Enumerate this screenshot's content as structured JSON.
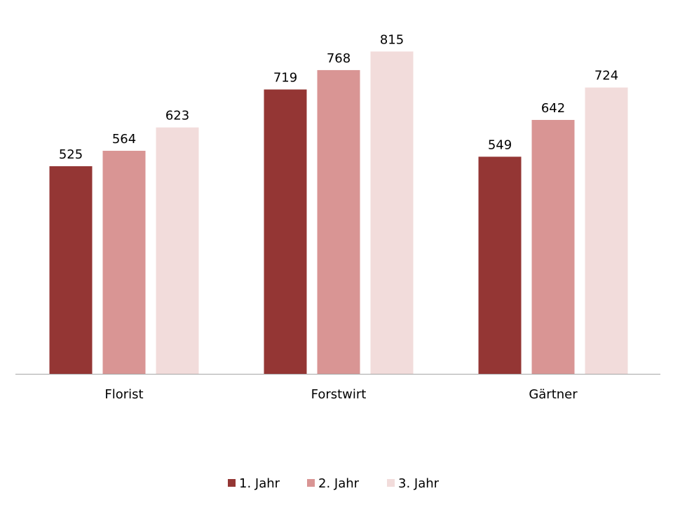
{
  "chart_data": {
    "type": "bar",
    "title": "",
    "xlabel": "",
    "ylabel": "",
    "categories": [
      "Florist",
      "Forstwirt",
      "Gärtner"
    ],
    "series": [
      {
        "name": "1. Jahr",
        "values": [
          525,
          719,
          549
        ],
        "color": "#943634"
      },
      {
        "name": "2. Jahr",
        "values": [
          564,
          768,
          642
        ],
        "color": "#D99594"
      },
      {
        "name": "3. Jahr",
        "values": [
          623,
          815,
          724
        ],
        "color": "#F2DCDB"
      }
    ],
    "ylim": [
      0,
      900
    ],
    "grid": false,
    "data_labels": true,
    "legend_position": "bottom"
  }
}
